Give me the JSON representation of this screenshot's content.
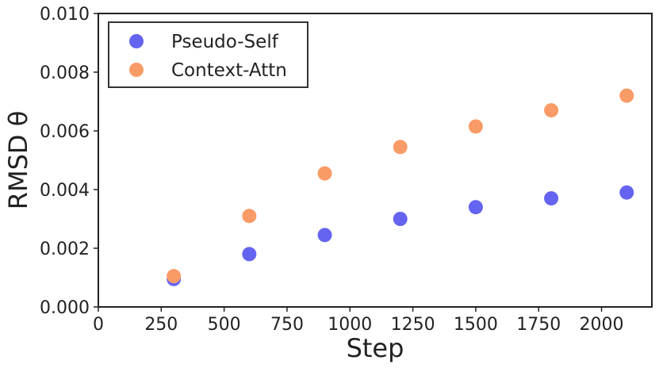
{
  "chart_data": {
    "type": "scatter",
    "title": "",
    "xlabel": "Step",
    "ylabel": "RMSD θ",
    "xlim": [
      0,
      2200
    ],
    "ylim": [
      0,
      0.01
    ],
    "xticks": [
      0,
      250,
      500,
      750,
      1000,
      1250,
      1500,
      1750,
      2000
    ],
    "xtick_labels": [
      "0",
      "250",
      "500",
      "750",
      "1000",
      "1250",
      "1500",
      "1750",
      "2000"
    ],
    "yticks": [
      0,
      0.002,
      0.004,
      0.006,
      0.008,
      0.01
    ],
    "ytick_labels": [
      "0.000",
      "0.002",
      "0.004",
      "0.006",
      "0.008",
      "0.010"
    ],
    "grid": false,
    "legend_position": "top-left",
    "series": [
      {
        "name": "Pseudo-Self",
        "color": "#6464f0",
        "x": [
          300,
          600,
          900,
          1200,
          1500,
          1800,
          2100
        ],
        "y": [
          0.00095,
          0.0018,
          0.00245,
          0.003,
          0.0034,
          0.0037,
          0.0039
        ]
      },
      {
        "name": "Context-Attn",
        "color": "#f99b66",
        "x": [
          300,
          600,
          900,
          1200,
          1500,
          1800,
          2100
        ],
        "y": [
          0.00105,
          0.0031,
          0.00455,
          0.00545,
          0.00615,
          0.0067,
          0.0072
        ]
      }
    ]
  }
}
